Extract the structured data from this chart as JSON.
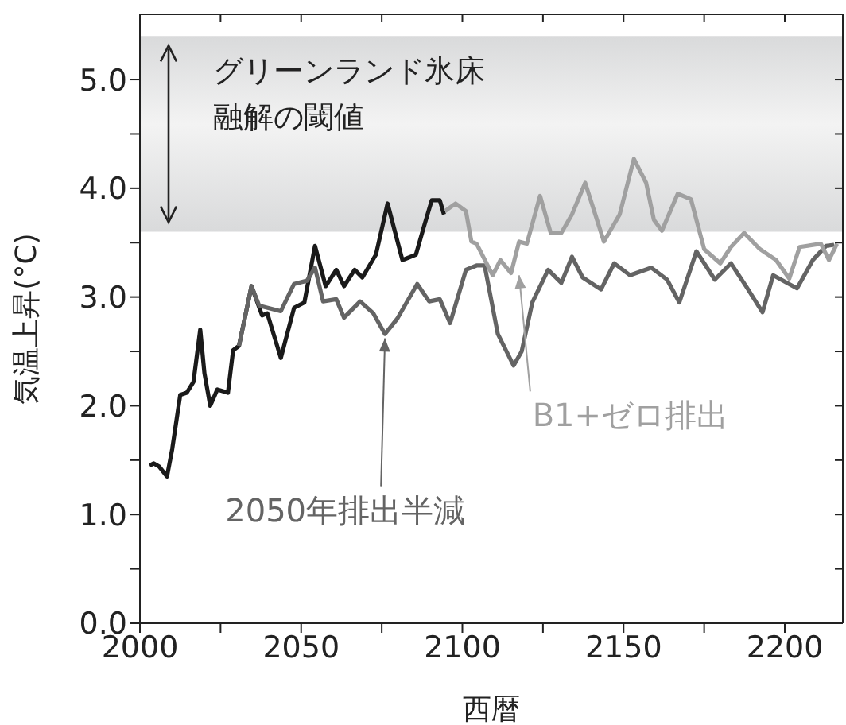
{
  "chart_data": {
    "type": "line",
    "xlabel": "西暦",
    "ylabel": "気温上昇(°C)",
    "xlim": [
      2000,
      2218
    ],
    "xticks": [
      2000,
      {
        "value": 2025,
        "label": null
      },
      2050,
      {
        "value": 2075,
        "label": null
      },
      2100,
      {
        "value": 2125,
        "label": null
      },
      2150,
      {
        "value": 2175,
        "label": null
      },
      2200
    ],
    "ylim": [
      0,
      5.6
    ],
    "yticks": [
      {
        "value": 0,
        "label": "0.0"
      },
      {
        "value": 0.5,
        "label": null
      },
      {
        "value": 1,
        "label": "1.0"
      },
      {
        "value": 1.5,
        "label": null
      },
      {
        "value": 2,
        "label": "2.0"
      },
      {
        "value": 2.5,
        "label": null
      },
      {
        "value": 3,
        "label": "3.0"
      },
      {
        "value": 3.5,
        "label": null
      },
      {
        "value": 4,
        "label": "4.0"
      },
      {
        "value": 4.5,
        "label": null
      },
      {
        "value": 5,
        "label": "5.0"
      }
    ],
    "marker": "none",
    "line_style": "solid",
    "bands": [
      {
        "axis": "y",
        "from": 3.6,
        "to": 5.4,
        "label": "グリーンランド氷床融解の閾値",
        "color": "#d9dadb"
      }
    ],
    "annotations": [
      {
        "text": "2050年排出半減",
        "x": 2076,
        "y": 2.62
      },
      {
        "text": "B1+ゼロ排出",
        "x": 2117.6,
        "y": 3.2
      }
    ],
    "series": [
      {
        "color": "#1a1a1a",
        "x": [
          2003,
          2004.3,
          2006,
          2008.4,
          2010,
          2012.5,
          2014.5,
          2016.6,
          2018.7,
          2020,
          2021.8,
          2024,
          2027.3,
          2028.9,
          2030.7,
          2034.6,
          2037.9,
          2039.5,
          2043.7,
          2047.8,
          2051,
          2054.3,
          2057.6,
          2060.9,
          2063.3,
          2066.6,
          2069,
          2073.2,
          2076.8,
          2081.4,
          2085.6,
          2088,
          2090.5,
          2093,
          2094.3
        ],
        "values": [
          1.45,
          1.47,
          1.44,
          1.35,
          1.6,
          2.1,
          2.12,
          2.22,
          2.7,
          2.3,
          2.0,
          2.15,
          2.12,
          2.51,
          2.55,
          3.1,
          2.83,
          2.85,
          2.44,
          2.9,
          2.95,
          3.47,
          3.1,
          3.25,
          3.1,
          3.25,
          3.18,
          3.39,
          3.86,
          3.34,
          3.39,
          3.64,
          3.89,
          3.89,
          3.76
        ]
      },
      {
        "color": "#646464",
        "x": [
          2030.7,
          2034.6,
          2037,
          2043.7,
          2047.8,
          2051.8,
          2054.3,
          2056.8,
          2060.9,
          2063.3,
          2068.3,
          2072.4,
          2076,
          2079.8,
          2086,
          2089.7,
          2093,
          2096.2,
          2101.1,
          2104.4,
          2106.9,
          2111,
          2115.9,
          2118.4,
          2121.7,
          2126.6,
          2130.7,
          2134,
          2137.3,
          2143,
          2147.1,
          2152,
          2158.6,
          2163.5,
          2167.3,
          2172.6,
          2178.3,
          2183.3,
          2188.2,
          2193.1,
          2196.4,
          2203.8,
          2208.7,
          2212.8,
          2215.3
        ],
        "values": [
          2.55,
          3.1,
          2.92,
          2.87,
          3.12,
          3.15,
          3.27,
          2.96,
          2.98,
          2.81,
          2.96,
          2.85,
          2.66,
          2.8,
          3.12,
          2.96,
          2.98,
          2.76,
          3.25,
          3.29,
          3.29,
          2.66,
          2.37,
          2.5,
          2.95,
          3.25,
          3.13,
          3.37,
          3.18,
          3.07,
          3.31,
          3.2,
          3.27,
          3.16,
          2.95,
          3.42,
          3.16,
          3.31,
          3.09,
          2.86,
          3.2,
          3.08,
          3.34,
          3.47,
          3.48
        ]
      },
      {
        "color": "#a0a0a0",
        "x": [
          2094.6,
          2097.9,
          2101.1,
          2102.8,
          2104.4,
          2109.4,
          2111.8,
          2115.1,
          2117.6,
          2120,
          2124.1,
          2127.4,
          2130.7,
          2134,
          2138.1,
          2143.9,
          2148.8,
          2153.2,
          2157,
          2159.4,
          2161.9,
          2166.8,
          2170.9,
          2175,
          2180,
          2183.3,
          2187.4,
          2192.3,
          2197.3,
          2201.4,
          2204.6,
          2211.2,
          2213.7,
          2216.2
        ],
        "values": [
          3.79,
          3.86,
          3.79,
          3.51,
          3.49,
          3.2,
          3.34,
          3.22,
          3.51,
          3.49,
          3.93,
          3.59,
          3.59,
          3.76,
          4.05,
          3.51,
          3.76,
          4.27,
          4.05,
          3.71,
          3.61,
          3.95,
          3.9,
          3.44,
          3.31,
          3.46,
          3.59,
          3.44,
          3.34,
          3.17,
          3.46,
          3.49,
          3.34,
          3.49
        ]
      }
    ]
  }
}
